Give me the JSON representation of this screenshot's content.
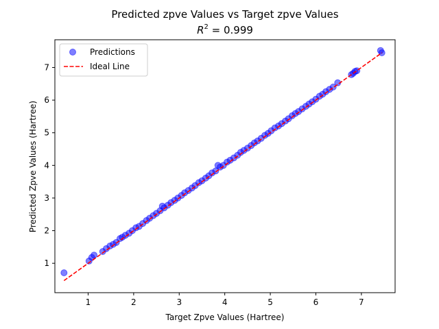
{
  "chart_data": {
    "type": "scatter",
    "title": "Predicted zpve Values vs Target zpve Values",
    "subtitle_symbol": "R",
    "subtitle_exponent": "2",
    "subtitle_rest": " =  0.999",
    "xlabel": "Target Zpve Values (Hartree)",
    "ylabel": "Predicted Zpve Values (Hartree)",
    "xlim": [
      0.27,
      7.74
    ],
    "ylim": [
      0.1,
      7.85
    ],
    "x_ticks": [
      1,
      2,
      3,
      4,
      5,
      6,
      7
    ],
    "x_tick_labels": [
      "1",
      "2",
      "3",
      "4",
      "5",
      "6",
      "7"
    ],
    "y_ticks": [
      1,
      2,
      3,
      4,
      5,
      6,
      7
    ],
    "y_tick_labels": [
      "1",
      "2",
      "3",
      "4",
      "5",
      "6",
      "7"
    ],
    "grid": false,
    "legend_placement": "top-left",
    "legend": {
      "predictions_label": "Predictions",
      "ideal_label": "Ideal Line"
    },
    "series": [
      {
        "name": "Predictions",
        "kind": "scatter",
        "color": "#0000ff",
        "x": [
          0.47,
          1.02,
          1.08,
          1.13,
          1.32,
          1.4,
          1.48,
          1.55,
          1.62,
          1.7,
          1.75,
          1.82,
          1.9,
          1.97,
          2.05,
          2.12,
          2.2,
          2.28,
          2.35,
          2.43,
          2.5,
          2.58,
          2.63,
          2.67,
          2.75,
          2.82,
          2.9,
          2.97,
          3.05,
          3.12,
          3.2,
          3.28,
          3.35,
          3.43,
          3.5,
          3.58,
          3.65,
          3.72,
          3.8,
          3.85,
          3.9,
          3.97,
          4.05,
          4.12,
          4.2,
          4.28,
          4.35,
          4.42,
          4.5,
          4.58,
          4.65,
          4.72,
          4.8,
          4.88,
          4.95,
          5.02,
          5.1,
          5.18,
          5.25,
          5.33,
          5.4,
          5.48,
          5.55,
          5.62,
          5.7,
          5.78,
          5.85,
          5.92,
          6.0,
          6.08,
          6.15,
          6.22,
          6.3,
          6.38,
          6.48,
          6.78,
          6.82,
          6.86,
          6.9,
          7.42,
          7.45
        ],
        "y": [
          0.71,
          1.07,
          1.18,
          1.25,
          1.36,
          1.45,
          1.53,
          1.58,
          1.64,
          1.76,
          1.8,
          1.86,
          1.92,
          2.0,
          2.09,
          2.13,
          2.22,
          2.31,
          2.38,
          2.46,
          2.53,
          2.61,
          2.75,
          2.7,
          2.78,
          2.86,
          2.93,
          3.0,
          3.08,
          3.16,
          3.23,
          3.31,
          3.38,
          3.47,
          3.53,
          3.61,
          3.68,
          3.77,
          3.83,
          4.0,
          3.95,
          4.0,
          4.1,
          4.16,
          4.23,
          4.31,
          4.4,
          4.46,
          4.53,
          4.61,
          4.69,
          4.75,
          4.83,
          4.92,
          4.98,
          5.06,
          5.15,
          5.21,
          5.28,
          5.36,
          5.43,
          5.52,
          5.59,
          5.65,
          5.73,
          5.81,
          5.88,
          5.95,
          6.03,
          6.12,
          6.18,
          6.26,
          6.33,
          6.4,
          6.53,
          6.78,
          6.82,
          6.88,
          6.9,
          7.52,
          7.45
        ]
      },
      {
        "name": "Ideal Line",
        "kind": "line",
        "color": "#ff0000",
        "x": [
          0.47,
          7.45
        ],
        "y": [
          0.47,
          7.45
        ]
      }
    ]
  }
}
